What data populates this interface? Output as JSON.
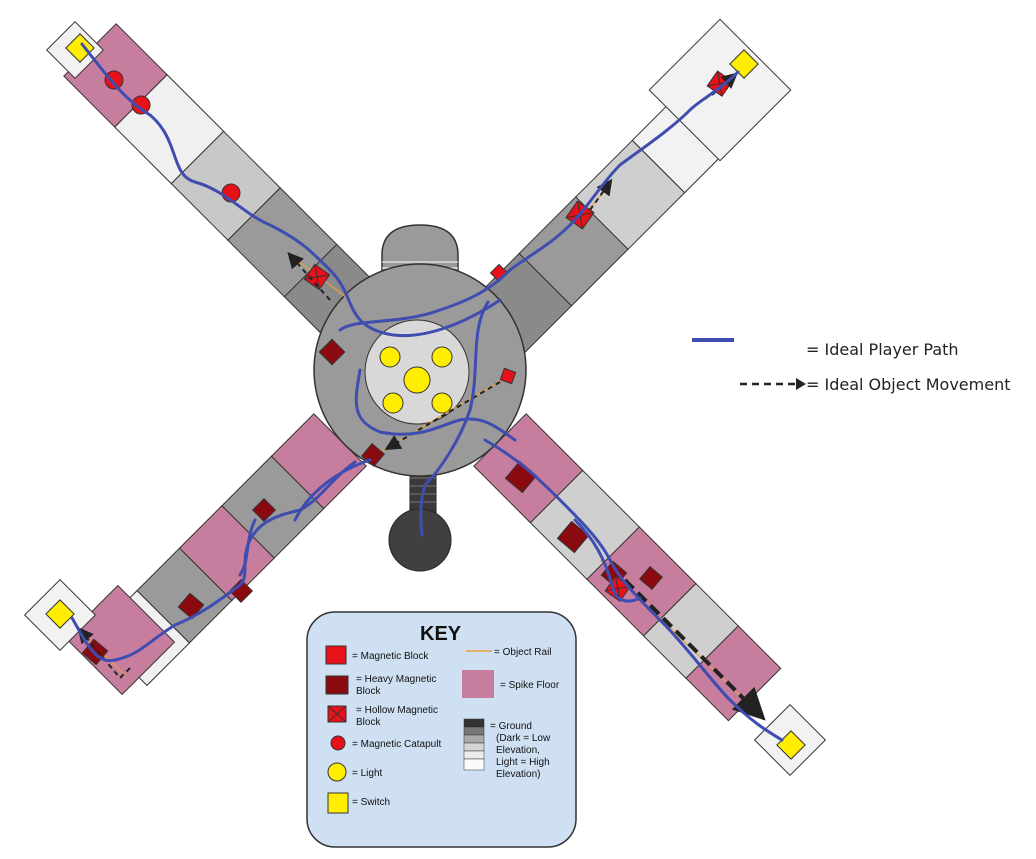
{
  "legend": {
    "player_path": "= Ideal Player Path",
    "object_movement": "= Ideal Object Movement"
  },
  "key": {
    "title": "KEY",
    "magnetic_block": "= Magnetic Block",
    "heavy_block_1": "= Heavy Magnetic",
    "heavy_block_2": "Block",
    "hollow_block_1": "= Hollow Magnetic",
    "hollow_block_2": "Block",
    "catapult": "= Magnetic Catapult",
    "light": "= Light",
    "switch": "= Switch",
    "object_rail": "= Object Rail",
    "spike_floor": "= Spike Floor",
    "ground_1": "= Ground",
    "ground_2": "(Dark = Low",
    "ground_3": "Elevation,",
    "ground_4": "Light = High",
    "ground_5": "Elevation)"
  },
  "colors": {
    "player_path": "#3f4db0",
    "magnetic_block": "#e8111a",
    "heavy_block": "#8b0a10",
    "spike_floor": "#c77e9e",
    "light": "#ffee00",
    "switch": "#ffee00",
    "object_rail": "#e8a040",
    "key_background": "#cfe0f2",
    "ground_low": "#8a8a8a",
    "ground_high": "#f2f2f2"
  }
}
